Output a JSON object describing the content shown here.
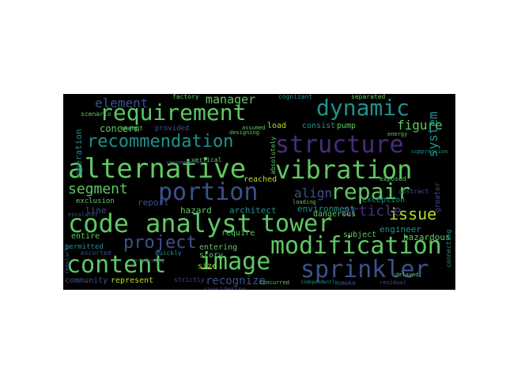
{
  "wordcloud": {
    "background": "#000000",
    "words": [
      {
        "text": "alternative",
        "weight": 100,
        "color": "#5ec962"
      },
      {
        "text": "vibration",
        "weight": 96,
        "color": "#5ec962"
      },
      {
        "text": "code",
        "weight": 92,
        "color": "#5ec962"
      },
      {
        "text": "analyst",
        "weight": 88,
        "color": "#5ec962"
      },
      {
        "text": "tower",
        "weight": 86,
        "color": "#5ec962"
      },
      {
        "text": "modification",
        "weight": 90,
        "color": "#5ec962"
      },
      {
        "text": "content",
        "weight": 86,
        "color": "#5ec962"
      },
      {
        "text": "image",
        "weight": 80,
        "color": "#5ec962"
      },
      {
        "text": "sprinkler",
        "weight": 84,
        "color": "#3b528b"
      },
      {
        "text": "structure",
        "weight": 82,
        "color": "#472d7b"
      },
      {
        "text": "requirement",
        "weight": 80,
        "color": "#5ec962"
      },
      {
        "text": "dynamic",
        "weight": 78,
        "color": "#21918c"
      },
      {
        "text": "portion",
        "weight": 80,
        "color": "#3b528b"
      },
      {
        "text": "repair",
        "weight": 76,
        "color": "#5ec962"
      },
      {
        "text": "recommendation",
        "weight": 66,
        "color": "#21918c"
      },
      {
        "text": "project",
        "weight": 62,
        "color": "#3b528b"
      },
      {
        "text": "segment",
        "weight": 56,
        "color": "#5ec962"
      },
      {
        "text": "element",
        "weight": 50,
        "color": "#3b528b"
      },
      {
        "text": "issue",
        "weight": 54,
        "color": "#b5de2b"
      },
      {
        "text": "article",
        "weight": 50,
        "color": "#472d7b"
      },
      {
        "text": "align",
        "weight": 46,
        "color": "#3b528b"
      },
      {
        "text": "figure",
        "weight": 46,
        "color": "#5ec962"
      },
      {
        "text": "system",
        "weight": 46,
        "color": "#21918c"
      },
      {
        "text": "manager",
        "weight": 42,
        "color": "#5ec962"
      },
      {
        "text": "recognize",
        "weight": 40,
        "color": "#3b528b"
      },
      {
        "text": "concern",
        "weight": 34,
        "color": "#5ec962"
      },
      {
        "text": "operation",
        "weight": 30,
        "color": "#21918c"
      },
      {
        "text": "hazard",
        "weight": 32,
        "color": "#5ec962"
      },
      {
        "text": "architect",
        "weight": 30,
        "color": "#21918c"
      },
      {
        "text": "environment",
        "weight": 30,
        "color": "#21918c"
      },
      {
        "text": "engineer",
        "weight": 30,
        "color": "#21918c"
      },
      {
        "text": "hazardous",
        "weight": 30,
        "color": "#5ec962"
      },
      {
        "text": "report",
        "weight": 30,
        "color": "#3b528b"
      },
      {
        "text": "line",
        "weight": 30,
        "color": "#3b528b"
      },
      {
        "text": "exception",
        "weight": 28,
        "color": "#21918c"
      },
      {
        "text": "dangerous",
        "weight": 28,
        "color": "#5ec962"
      },
      {
        "text": "subject",
        "weight": 28,
        "color": "#5ec962"
      },
      {
        "text": "consist",
        "weight": 28,
        "color": "#21918c"
      },
      {
        "text": "pump",
        "weight": 28,
        "color": "#5ec962"
      },
      {
        "text": "load",
        "weight": 28,
        "color": "#b5de2b"
      },
      {
        "text": "reached",
        "weight": 26,
        "color": "#b5de2b"
      },
      {
        "text": "require",
        "weight": 26,
        "color": "#5ec962"
      },
      {
        "text": "entering",
        "weight": 26,
        "color": "#5ec962"
      },
      {
        "text": "story",
        "weight": 26,
        "color": "#5ec962"
      },
      {
        "text": "size",
        "weight": 26,
        "color": "#b5de2b"
      },
      {
        "text": "represent",
        "weight": 26,
        "color": "#b5de2b"
      },
      {
        "text": "community",
        "weight": 26,
        "color": "#3b528b"
      },
      {
        "text": "entire",
        "weight": 26,
        "color": "#5ec962"
      },
      {
        "text": "permitted",
        "weight": 24,
        "color": "#21918c"
      },
      {
        "text": "exclusion",
        "weight": 24,
        "color": "#5ec962"
      },
      {
        "text": "provided",
        "weight": 24,
        "color": "#3b528b"
      },
      {
        "text": "exempt",
        "weight": 22,
        "color": "#5ec962"
      },
      {
        "text": "factory",
        "weight": 22,
        "color": "#5ec962"
      },
      {
        "text": "separated",
        "weight": 22,
        "color": "#5ec962"
      },
      {
        "text": "cognizant",
        "weight": 22,
        "color": "#21918c"
      },
      {
        "text": "scenario",
        "weight": 22,
        "color": "#5ec962"
      },
      {
        "text": "vertical",
        "weight": 22,
        "color": "#5ec962"
      },
      {
        "text": "assumed",
        "weight": 20,
        "color": "#5ec962"
      },
      {
        "text": "quickly",
        "weight": 22,
        "color": "#21918c"
      },
      {
        "text": "strictly",
        "weight": 22,
        "color": "#3b528b"
      },
      {
        "text": "considering",
        "weight": 22,
        "color": "#3b528b"
      },
      {
        "text": "escorted",
        "weight": 22,
        "color": "#3b528b"
      },
      {
        "text": "producing",
        "weight": 20,
        "color": "#3b528b"
      },
      {
        "text": "concurred",
        "weight": 20,
        "color": "#5ec962"
      },
      {
        "text": "smoke",
        "weight": 22,
        "color": "#3b528b"
      },
      {
        "text": "residual",
        "weight": 20,
        "color": "#3b528b"
      },
      {
        "text": "exposed",
        "weight": 22,
        "color": "#5ec962"
      },
      {
        "text": "greater",
        "weight": 24,
        "color": "#3b528b"
      },
      {
        "text": "connecting",
        "weight": 22,
        "color": "#21918c"
      },
      {
        "text": "absolutely",
        "weight": 22,
        "color": "#5ec962"
      },
      {
        "text": "recommended",
        "weight": 20,
        "color": "#3b528b"
      },
      {
        "text": "escalator",
        "weight": 18,
        "color": "#3b528b"
      },
      {
        "text": "energy",
        "weight": 18,
        "color": "#5ec962"
      },
      {
        "text": "delayed",
        "weight": 18,
        "color": "#5ec962"
      },
      {
        "text": "designing",
        "weight": 18,
        "color": "#5ec962"
      },
      {
        "text": "loading",
        "weight": 18,
        "color": "#5ec962"
      },
      {
        "text": "regularly",
        "weight": 18,
        "color": "#3b528b"
      },
      {
        "text": "abstract",
        "weight": 18,
        "color": "#3b528b"
      },
      {
        "text": "suppression",
        "weight": 18,
        "color": "#21918c"
      },
      {
        "text": "independently",
        "weight": 18,
        "color": "#21918c"
      }
    ]
  }
}
